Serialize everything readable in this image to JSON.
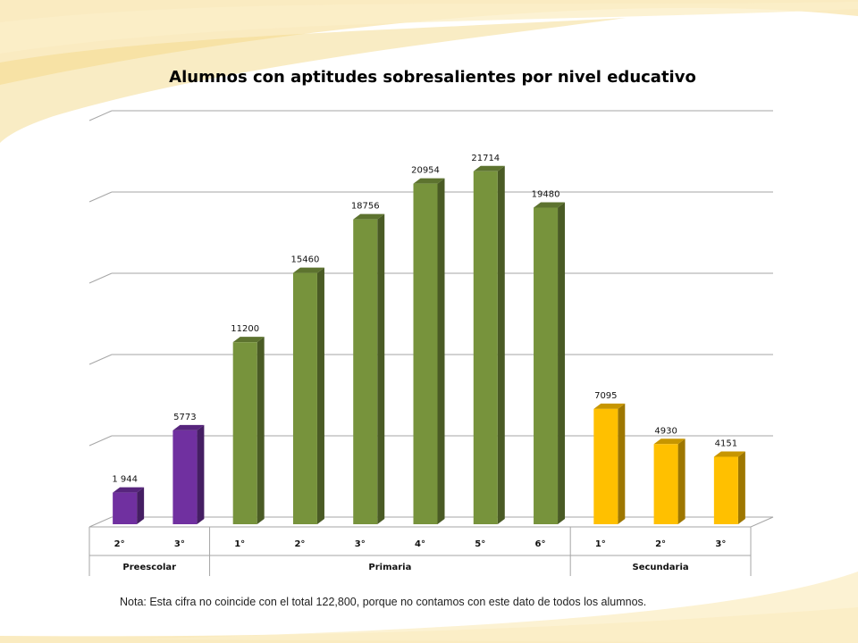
{
  "chart_data": {
    "type": "bar",
    "title": "Alumnos con aptitudes sobresalientes por nivel educativo",
    "categories": [
      "2°",
      "3°",
      "1°",
      "2°",
      "3°",
      "4°",
      "5°",
      "6°",
      "1°",
      "2°",
      "3°"
    ],
    "groups": [
      {
        "name": "Preescolar",
        "count": 2,
        "color": "#7030a0"
      },
      {
        "name": "Primaria",
        "count": 6,
        "color": "#77933c"
      },
      {
        "name": "Secundaria",
        "count": 3,
        "color": "#ffc000"
      }
    ],
    "values": [
      1944,
      5773,
      11200,
      15460,
      18756,
      20954,
      21714,
      19480,
      7095,
      4930,
      4151
    ],
    "value_labels": [
      "1 944",
      "5773",
      "11200",
      "15460",
      "18756",
      "20954",
      "21714",
      "19480",
      "7095",
      "4930",
      "4151"
    ],
    "ylim": [
      0,
      25000
    ],
    "y_gridlines": [
      5000,
      10000,
      15000,
      20000,
      25000
    ],
    "grid": true,
    "xlabel": "",
    "ylabel": ""
  },
  "note": "Nota: Esta cifra no coincide con el total 122,800, porque no contamos con este dato de todos los alumnos.",
  "colors": {
    "preescolar": "#7030a0",
    "primaria": "#77933c",
    "secundaria": "#ffc000",
    "grid": "#a6a6a6",
    "background_swirl": "#f6dd96"
  }
}
